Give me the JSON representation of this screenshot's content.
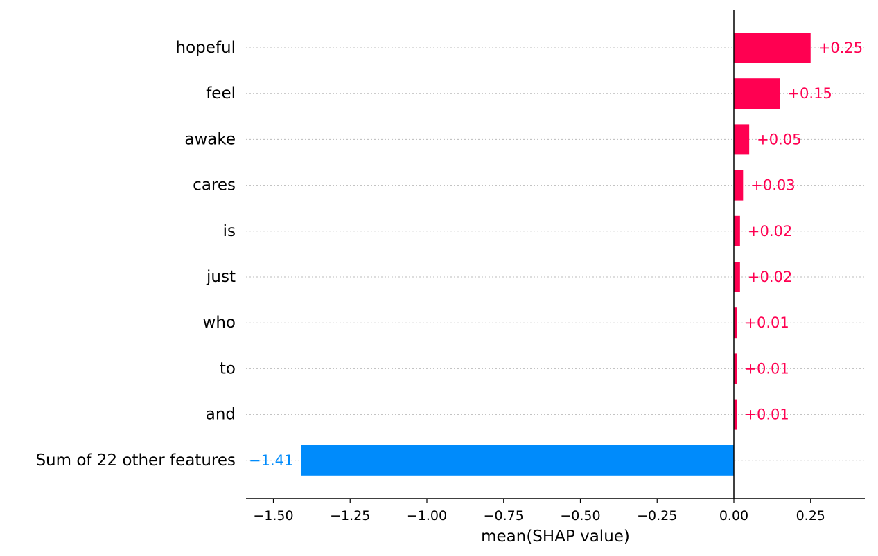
{
  "chart_data": {
    "type": "bar",
    "orientation": "horizontal",
    "xlabel": "mean(SHAP value)",
    "ylabel": "",
    "title": "",
    "xlim": [
      -1.58,
      0.42
    ],
    "categories": [
      "hopeful",
      "feel",
      "awake",
      "cares",
      "is",
      "just",
      "who",
      "to",
      "and",
      "Sum of 22 other features"
    ],
    "values": [
      0.25,
      0.15,
      0.05,
      0.03,
      0.02,
      0.02,
      0.01,
      0.01,
      0.01,
      -1.41
    ],
    "value_labels": [
      "+0.25",
      "+0.15",
      "+0.05",
      "+0.03",
      "+0.02",
      "+0.02",
      "+0.01",
      "+0.01",
      "+0.01",
      "−1.41"
    ],
    "x_ticks": [
      -1.5,
      -1.25,
      -1.0,
      -0.75,
      -0.5,
      -0.25,
      0.0,
      0.25
    ],
    "x_tick_labels": [
      "−1.50",
      "−1.25",
      "−1.00",
      "−0.75",
      "−0.50",
      "−0.25",
      "0.00",
      "0.25"
    ],
    "grid": "horizontal dotted per row",
    "colors": {
      "positive": "#ff0051",
      "negative": "#008bfb",
      "axis": "#000000",
      "grid": "#bbbbbb"
    }
  }
}
